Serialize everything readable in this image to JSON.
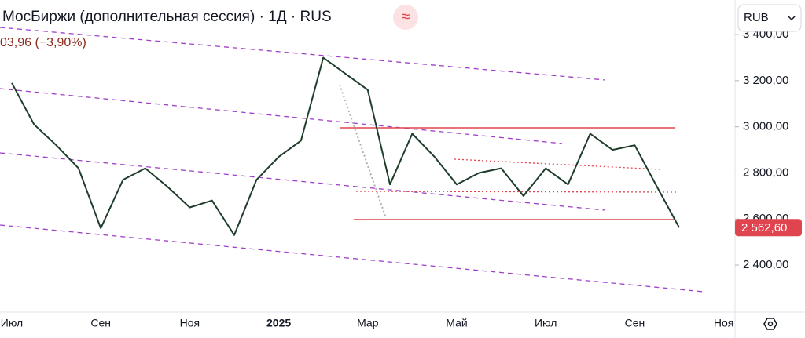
{
  "chart_data": {
    "type": "line",
    "title": "МосБиржи (дополнительная сессия) · 1Д · RUS",
    "badge": "≈",
    "subtitle": "03,96 (−3,90%)",
    "currency": "RUB",
    "categories": [
      "Июл",
      null,
      null,
      null,
      "Сен",
      null,
      null,
      null,
      "Ноя",
      null,
      null,
      null,
      "2025",
      null,
      null,
      null,
      "Мар",
      null,
      null,
      null,
      "Май",
      null,
      null,
      null,
      "Июл",
      null,
      null,
      null,
      "Сен",
      null,
      null,
      null,
      "Ноя"
    ],
    "series": [
      {
        "name": "МосБиржи",
        "color": "#1f3d2b",
        "values": [
          3190,
          3010,
          2920,
          2820,
          2560,
          2770,
          2820,
          2740,
          2650,
          2680,
          2530,
          2770,
          2870,
          2940,
          3300,
          3230,
          3160,
          2750,
          2970,
          2870,
          2750,
          2800,
          2820,
          2700,
          2820,
          2750,
          2970,
          2900,
          2920,
          2740,
          2562.6,
          null,
          null
        ]
      }
    ],
    "ylim": [
      2196,
      3550
    ],
    "yticks": [
      {
        "value": 2400,
        "label": "2 400,00"
      },
      {
        "value": 2600,
        "label": "2 600,00"
      },
      {
        "value": 2800,
        "label": "2 800,00"
      },
      {
        "value": 3000,
        "label": "3 000,00"
      },
      {
        "value": 3200,
        "label": "3 200,00"
      },
      {
        "value": 3400,
        "label": "3 400,00"
      }
    ],
    "last_price": {
      "value": 2562.6,
      "label": "2 562,60"
    },
    "grid": false
  }
}
